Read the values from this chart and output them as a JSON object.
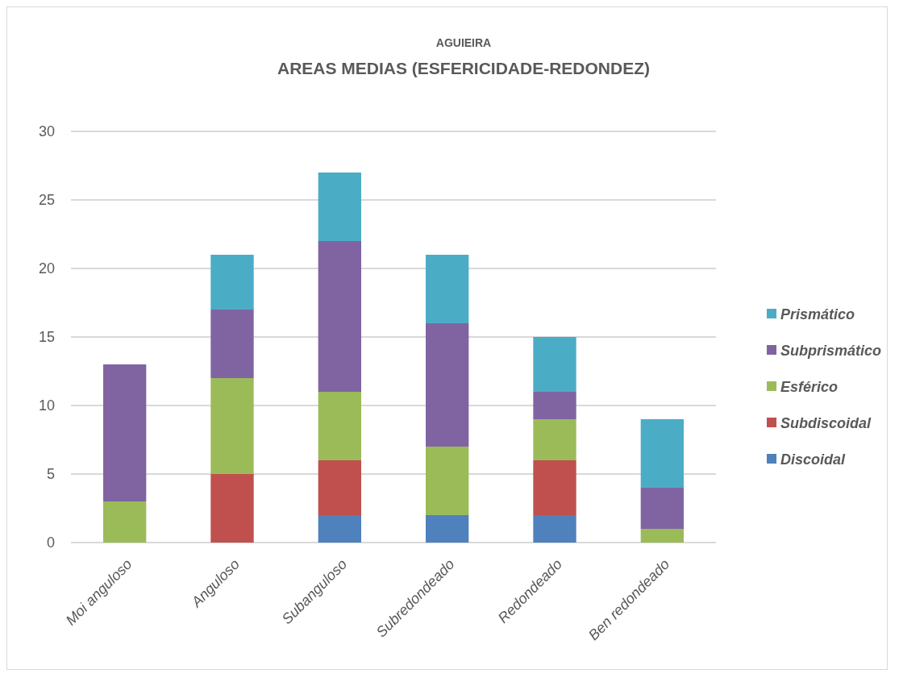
{
  "chart_data": {
    "type": "bar",
    "stacked": true,
    "title": "AGUIEIRA",
    "subtitle": "AREAS MEDIAS (ESFERICIDADE-REDONDEZ)",
    "categories": [
      "Moi anguloso",
      "Anguloso",
      "Subanguloso",
      "Subredondeado",
      "Redondeado",
      "Ben redondeado"
    ],
    "series": [
      {
        "name": "Discoidal",
        "color": "#4f81bd",
        "values": [
          0,
          0,
          2,
          2,
          2,
          0
        ]
      },
      {
        "name": "Subdiscoidal",
        "color": "#c0504d",
        "values": [
          0,
          5,
          4,
          0,
          4,
          0
        ]
      },
      {
        "name": "Esférico",
        "color": "#9bbb59",
        "values": [
          3,
          7,
          5,
          5,
          3,
          1
        ]
      },
      {
        "name": "Subprismático",
        "color": "#8064a2",
        "values": [
          10,
          5,
          11,
          9,
          2,
          3
        ]
      },
      {
        "name": "Prismático",
        "color": "#4bacc6",
        "values": [
          0,
          4,
          5,
          5,
          4,
          5
        ]
      }
    ],
    "ylim": [
      0,
      30
    ],
    "yticks": [
      0,
      5,
      10,
      15,
      20,
      25,
      30
    ],
    "grid": "y",
    "legend": "right"
  }
}
